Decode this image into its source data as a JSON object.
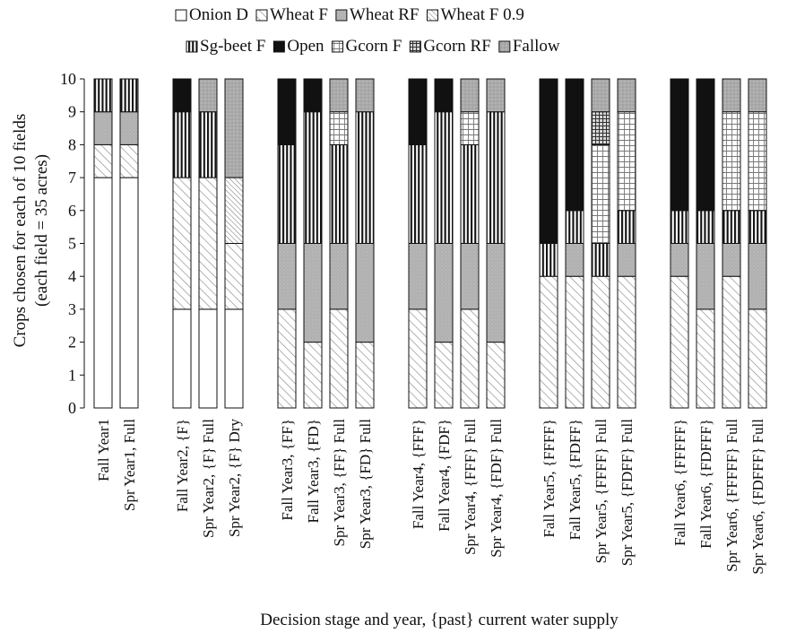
{
  "chart_data": {
    "type": "bar",
    "stacked": true,
    "title": "",
    "xlabel": "Decision stage and year, {past} current water supply",
    "ylabel_lines": [
      "Crops chosen for each of 10 fields",
      "(each field = 35 acres)"
    ],
    "ylim": [
      0,
      10
    ],
    "yticks": [
      0,
      1,
      2,
      3,
      4,
      5,
      6,
      7,
      8,
      9,
      10
    ],
    "grid": false,
    "legend_position": "top",
    "legend_rows": [
      [
        "Onion D",
        "Wheat F",
        "Wheat RF",
        "Wheat F 0.9"
      ],
      [
        "Sg-beet F",
        "Open",
        "Gcorn F",
        "Gcorn RF",
        "Fallow"
      ]
    ],
    "series": [
      {
        "name": "Onion D",
        "pattern": "empty"
      },
      {
        "name": "Wheat F",
        "pattern": "diagonal"
      },
      {
        "name": "Wheat RF",
        "pattern": "dotted-gray"
      },
      {
        "name": "Wheat F 0.9",
        "pattern": "diagonal-dense"
      },
      {
        "name": "Sg-beet F",
        "pattern": "vertical-stripes"
      },
      {
        "name": "Open",
        "pattern": "solid-black"
      },
      {
        "name": "Gcorn F",
        "pattern": "grid"
      },
      {
        "name": "Gcorn RF",
        "pattern": "dense-grid"
      },
      {
        "name": "Fallow",
        "pattern": "speckled-gray"
      }
    ],
    "groups": [
      {
        "bars": [
          {
            "label": "Fall Year1",
            "stack": [
              [
                "Onion D",
                7
              ],
              [
                "Wheat F",
                1
              ],
              [
                "Wheat RF",
                1
              ],
              [
                "Sg-beet F",
                1
              ]
            ]
          },
          {
            "label": "Spr Year1, Full",
            "stack": [
              [
                "Onion D",
                7
              ],
              [
                "Wheat F",
                1
              ],
              [
                "Wheat RF",
                1
              ],
              [
                "Sg-beet F",
                1
              ]
            ]
          }
        ]
      },
      {
        "bars": [
          {
            "label": "Fall Year2, {F}",
            "stack": [
              [
                "Onion D",
                3
              ],
              [
                "Wheat F",
                4
              ],
              [
                "Sg-beet F",
                2
              ],
              [
                "Open",
                1
              ]
            ]
          },
          {
            "label": "Spr Year2, {F} Full",
            "stack": [
              [
                "Onion D",
                3
              ],
              [
                "Wheat F",
                4
              ],
              [
                "Sg-beet F",
                2
              ],
              [
                "Fallow",
                1
              ]
            ]
          },
          {
            "label": "Spr Year2, {F} Dry",
            "stack": [
              [
                "Onion D",
                3
              ],
              [
                "Wheat F",
                2
              ],
              [
                "Wheat F 0.9",
                2
              ],
              [
                "Fallow",
                3
              ]
            ]
          }
        ]
      },
      {
        "bars": [
          {
            "label": "Fall Year3, {FF}",
            "stack": [
              [
                "Wheat F",
                3
              ],
              [
                "Wheat RF",
                2
              ],
              [
                "Sg-beet F",
                3
              ],
              [
                "Open",
                2
              ]
            ]
          },
          {
            "label": "Fall Year3, {FD}",
            "stack": [
              [
                "Wheat F",
                2
              ],
              [
                "Wheat RF",
                3
              ],
              [
                "Sg-beet F",
                4
              ],
              [
                "Open",
                1
              ]
            ]
          },
          {
            "label": "Spr Year3, {FF} Full",
            "stack": [
              [
                "Wheat F",
                3
              ],
              [
                "Wheat RF",
                2
              ],
              [
                "Sg-beet F",
                3
              ],
              [
                "Gcorn F",
                1
              ],
              [
                "Fallow",
                1
              ]
            ]
          },
          {
            "label": "Spr Year3, {FD} Full",
            "stack": [
              [
                "Wheat F",
                2
              ],
              [
                "Wheat RF",
                3
              ],
              [
                "Sg-beet F",
                4
              ],
              [
                "Fallow",
                1
              ]
            ]
          }
        ]
      },
      {
        "bars": [
          {
            "label": "Fall Year4, {FFF}",
            "stack": [
              [
                "Wheat F",
                3
              ],
              [
                "Wheat RF",
                2
              ],
              [
                "Sg-beet F",
                3
              ],
              [
                "Open",
                2
              ]
            ]
          },
          {
            "label": "Fall Year4, {FDF}",
            "stack": [
              [
                "Wheat F",
                2
              ],
              [
                "Wheat RF",
                3
              ],
              [
                "Sg-beet F",
                4
              ],
              [
                "Open",
                1
              ]
            ]
          },
          {
            "label": "Spr Year4, {FFF} Full",
            "stack": [
              [
                "Wheat F",
                3
              ],
              [
                "Wheat RF",
                2
              ],
              [
                "Sg-beet F",
                3
              ],
              [
                "Gcorn F",
                1
              ],
              [
                "Fallow",
                1
              ]
            ]
          },
          {
            "label": "Spr Year4, {FDF} Full",
            "stack": [
              [
                "Wheat F",
                2
              ],
              [
                "Wheat RF",
                3
              ],
              [
                "Sg-beet F",
                4
              ],
              [
                "Fallow",
                1
              ]
            ]
          }
        ]
      },
      {
        "bars": [
          {
            "label": "Fall Year5, {FFFF}",
            "stack": [
              [
                "Wheat F",
                4
              ],
              [
                "Sg-beet F",
                1
              ],
              [
                "Open",
                5
              ]
            ]
          },
          {
            "label": "Fall Year5, {FDFF}",
            "stack": [
              [
                "Wheat F",
                4
              ],
              [
                "Wheat RF",
                1
              ],
              [
                "Sg-beet F",
                1
              ],
              [
                "Open",
                4
              ]
            ]
          },
          {
            "label": "Spr Year5, {FFFF} Full",
            "stack": [
              [
                "Wheat F",
                4
              ],
              [
                "Sg-beet F",
                1
              ],
              [
                "Gcorn F",
                3
              ],
              [
                "Gcorn RF",
                1
              ],
              [
                "Fallow",
                1
              ]
            ]
          },
          {
            "label": "Spr Year5, {FDFF} Full",
            "stack": [
              [
                "Wheat F",
                4
              ],
              [
                "Wheat RF",
                1
              ],
              [
                "Sg-beet F",
                1
              ],
              [
                "Gcorn F",
                3
              ],
              [
                "Fallow",
                1
              ]
            ]
          }
        ]
      },
      {
        "bars": [
          {
            "label": "Fall Year6, {FFFFF}",
            "stack": [
              [
                "Wheat F",
                4
              ],
              [
                "Wheat RF",
                1
              ],
              [
                "Sg-beet F",
                1
              ],
              [
                "Open",
                4
              ]
            ]
          },
          {
            "label": "Fall Year6, {FDFFF}",
            "stack": [
              [
                "Wheat F",
                3
              ],
              [
                "Wheat RF",
                2
              ],
              [
                "Sg-beet F",
                1
              ],
              [
                "Open",
                4
              ]
            ]
          },
          {
            "label": "Spr Year6, {FFFFF} Full",
            "stack": [
              [
                "Wheat F",
                4
              ],
              [
                "Wheat RF",
                1
              ],
              [
                "Sg-beet F",
                1
              ],
              [
                "Gcorn F",
                3
              ],
              [
                "Fallow",
                1
              ]
            ]
          },
          {
            "label": "Spr Year6, {FDFFF} Full",
            "stack": [
              [
                "Wheat F",
                3
              ],
              [
                "Wheat RF",
                2
              ],
              [
                "Sg-beet F",
                1
              ],
              [
                "Gcorn F",
                3
              ],
              [
                "Fallow",
                1
              ]
            ]
          }
        ]
      }
    ]
  }
}
